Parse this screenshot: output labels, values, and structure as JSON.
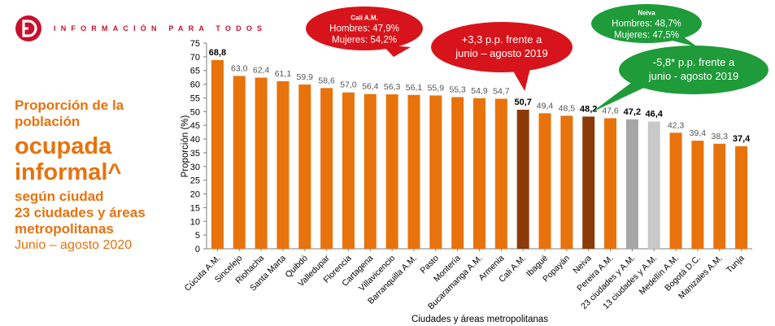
{
  "header": {
    "title": "INFORMACIÓN PARA TODOS"
  },
  "left_title": {
    "line1": "Proporción de la",
    "line2": "población",
    "line3": "ocupada",
    "line4": "informal^",
    "line5": "según ciudad",
    "line6": "23 ciudades y áreas",
    "line7": "metropolitanas",
    "line8": "Junio – agosto 2020"
  },
  "colors": {
    "brand": "#c8102e",
    "orange": "#e8720c",
    "highlight_brown": "#8b3a0a",
    "gray_total": "#a6a6a6",
    "gray_light": "#c8c8c8",
    "callout_red": "#d7141b",
    "callout_green": "#1f9b3a"
  },
  "chart_data": {
    "type": "bar",
    "ylabel": "Proporción (%)",
    "xlabel": "Ciudades y áreas metropolitanas",
    "ylim": [
      0,
      75
    ],
    "ytick_step": 5,
    "grid": false,
    "categories": [
      "Cúcuta A.M.",
      "Sincelejo",
      "Riohacha",
      "Santa Marta",
      "Quibdó",
      "Valledupar",
      "Florencia",
      "Cartagena",
      "Villavicencio",
      "Barranquilla A.M.",
      "Pasto",
      "Montería",
      "Bucaramanga A.M.",
      "Armenia",
      "Cali A.M.",
      "Ibagué",
      "Popayán",
      "Neiva",
      "Pereira A.M.",
      "23 ciudades y A.M.",
      "13 ciudades y A.M.",
      "Medellín A.M.",
      "Bogotá D.C.",
      "Manizales A.M.",
      "Tunja"
    ],
    "values": [
      68.8,
      63.0,
      62.4,
      61.1,
      59.9,
      58.6,
      57.0,
      56.4,
      56.3,
      56.1,
      55.9,
      55.3,
      54.9,
      54.7,
      50.7,
      49.4,
      48.5,
      48.2,
      47.6,
      47.2,
      46.4,
      42.3,
      39.4,
      38.3,
      37.4
    ],
    "value_labels": [
      "68,8",
      "63,0",
      "62,4",
      "61,1",
      "59,9",
      "58,6",
      "57,0",
      "56,4",
      "56,3",
      "56,1",
      "55,9",
      "55,3",
      "54,9",
      "54,7",
      "50,7",
      "49,4",
      "48,5",
      "48,2",
      "47,6",
      "47,2",
      "46,4",
      "42,3",
      "39,4",
      "38,3",
      "37,4"
    ],
    "bold_labels": [
      0,
      14,
      17,
      19,
      20,
      24
    ],
    "bar_colors": [
      "orange",
      "orange",
      "orange",
      "orange",
      "orange",
      "orange",
      "orange",
      "orange",
      "orange",
      "orange",
      "orange",
      "orange",
      "orange",
      "orange",
      "highlight_brown",
      "orange",
      "orange",
      "highlight_brown",
      "orange",
      "gray_total",
      "gray_light",
      "orange",
      "orange",
      "orange",
      "orange"
    ],
    "annotations": [
      {
        "id": "cali-box",
        "color": "callout_red",
        "title": "Cali A.M.",
        "lines": [
          "Hombres: 47,9%",
          "Mujeres: 54,2%"
        ]
      },
      {
        "id": "cali-change",
        "color": "callout_red",
        "lines": [
          "+3,3 p.p. frente a",
          "junio – agosto 2019"
        ]
      },
      {
        "id": "neiva-box",
        "color": "callout_green",
        "title": "Neiva",
        "lines": [
          "Hombres: 48,7%",
          "Mujeres: 47,5%"
        ]
      },
      {
        "id": "neiva-change",
        "color": "callout_green",
        "lines": [
          "-5,8* p.p. frente a",
          "junio - agosto 2019"
        ]
      }
    ]
  }
}
